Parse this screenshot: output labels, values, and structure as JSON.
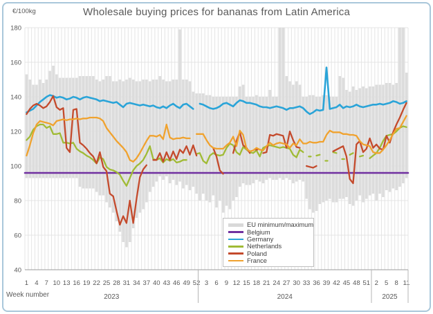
{
  "chart": {
    "title": "Wholesale buying prices for bananas from Latin America",
    "unit_label": "€/100kg",
    "xlabel": "Week number",
    "legend": [
      {
        "label": "EU minimum/maximum",
        "color": "#d9d9d9",
        "kind": "band"
      },
      {
        "label": "Belgium",
        "color": "#7030a0",
        "kind": "line"
      },
      {
        "label": "Germany",
        "color": "#2aa4d8",
        "kind": "line"
      },
      {
        "label": "Netherlands",
        "color": "#a0bb35",
        "kind": "line"
      },
      {
        "label": "Poland",
        "color": "#c44a2c",
        "kind": "line"
      },
      {
        "label": "France",
        "color": "#f0a22e",
        "kind": "line"
      }
    ]
  },
  "chart_data": {
    "type": "line",
    "title": "Wholesale buying prices for bananas from Latin America",
    "ylabel": "€/100kg",
    "xlabel": "Week number",
    "ylim": [
      40,
      180
    ],
    "yticks": [
      40,
      60,
      80,
      100,
      120,
      140,
      160,
      180
    ],
    "grid": true,
    "legend_position": "bottom-right-inside",
    "x_axis": {
      "years": [
        {
          "year": "2023",
          "weeks": 52,
          "tick_start": 1,
          "tick_step": 3
        },
        {
          "year": "2024",
          "weeks": 52,
          "tick_start": 3,
          "tick_step": 3
        },
        {
          "year": "2025",
          "weeks": 11,
          "tick_start": 2,
          "tick_step": 3
        }
      ]
    },
    "band": {
      "name": "EU minimum/maximum",
      "color": "#dcdcdc",
      "max": [
        153,
        150,
        147,
        147,
        150,
        148,
        150,
        155,
        158,
        153,
        151,
        151,
        151,
        151,
        151,
        151,
        152,
        152,
        152,
        152,
        152,
        150,
        149,
        150,
        152,
        152,
        149,
        149,
        150,
        149,
        150,
        151,
        150,
        149,
        149,
        150,
        150,
        149,
        150,
        150,
        152,
        150,
        149,
        149,
        150,
        150,
        179,
        150,
        150,
        149,
        143,
        142,
        142,
        142,
        141,
        141,
        140,
        140,
        140,
        140,
        140,
        140,
        140,
        140,
        146,
        147,
        140,
        140,
        140,
        141,
        140,
        140,
        140,
        144,
        140,
        140,
        180,
        180,
        152,
        149,
        147,
        149,
        147,
        140,
        140,
        141,
        141,
        140,
        140,
        141,
        141,
        140,
        140,
        140,
        152,
        151,
        144,
        143,
        146,
        144,
        145,
        146,
        145,
        146,
        146,
        147,
        147,
        147,
        148,
        148,
        147,
        148,
        180,
        180,
        154
      ],
      "min": [
        93,
        93,
        93,
        93,
        93,
        93,
        93,
        93,
        93,
        93,
        93,
        93,
        93,
        93,
        93,
        93,
        88,
        87,
        87,
        87,
        87,
        85,
        83,
        83,
        79,
        76,
        73,
        68,
        62,
        56,
        53,
        56,
        64,
        70,
        73,
        75,
        79,
        85,
        88,
        91,
        94,
        92,
        94,
        90,
        92,
        89,
        91,
        87,
        89,
        86,
        88,
        84,
        80,
        84,
        80,
        79,
        83,
        76,
        80,
        73,
        77,
        75,
        80,
        82,
        88,
        90,
        89,
        89,
        90,
        92,
        91,
        90,
        92,
        93,
        92,
        92,
        93,
        92,
        93,
        92,
        90,
        91,
        92,
        91,
        81,
        75,
        73,
        74,
        78,
        79,
        80,
        81,
        79,
        79,
        81,
        81,
        82,
        78,
        77,
        80,
        83,
        79,
        81,
        83,
        84,
        80,
        84,
        82,
        86,
        85,
        87,
        86,
        88,
        90,
        93
      ]
    },
    "series": [
      {
        "name": "Belgium",
        "color": "#7030a0",
        "width": 2.6,
        "constant": 96,
        "values": null
      },
      {
        "name": "Germany",
        "color": "#2aa4d8",
        "width": 2.6,
        "constant": null,
        "values": [
          131,
          132,
          133,
          135,
          137,
          138.5,
          140,
          141,
          140.5,
          139.5,
          140,
          139.5,
          138.5,
          139,
          140,
          139.5,
          138.5,
          139.5,
          140,
          139.5,
          139,
          138.5,
          137.5,
          138,
          137.5,
          137,
          136.5,
          137,
          135.5,
          134,
          136,
          136.5,
          136,
          135.5,
          135,
          135.5,
          135,
          134.5,
          135,
          134,
          133.5,
          134.5,
          133.5,
          135,
          136,
          134.5,
          133.5,
          135.5,
          136,
          134.5,
          133,
          null,
          136,
          135.5,
          134.5,
          133.5,
          133,
          133.5,
          134.5,
          136,
          136.5,
          135.5,
          134.5,
          136.5,
          138,
          137.5,
          136.5,
          136.5,
          136,
          135.5,
          134.5,
          134,
          134,
          133.5,
          134,
          134.5,
          134,
          133.5,
          132.5,
          133.5,
          133.5,
          134,
          134.5,
          133.5,
          131.5,
          130,
          131,
          132.5,
          132,
          132.5,
          157,
          133,
          133.5,
          134,
          135.5,
          133.5,
          134.5,
          134,
          134.5,
          135.5,
          134.5,
          134,
          134.5,
          135,
          135.5,
          135.5,
          136,
          135.5,
          136,
          136.5,
          137.5,
          137,
          136,
          136.5,
          137.5
        ]
      },
      {
        "name": "Netherlands",
        "color": "#a0bb35",
        "width": 2.3,
        "constant": null,
        "values": [
          115,
          117,
          121,
          123,
          124,
          124,
          122,
          123,
          118.5,
          118.5,
          119,
          113.5,
          113.5,
          113,
          113.5,
          110,
          108.5,
          107.5,
          106,
          105,
          103.5,
          101.5,
          105,
          104,
          99.5,
          98,
          97.5,
          96.5,
          95,
          91.5,
          88.5,
          93,
          97.5,
          100,
          101.5,
          103.5,
          107,
          111.5,
          104,
          103.5,
          104.5,
          102,
          104,
          103,
          104,
          102,
          102.5,
          103.5,
          103.5,
          null,
          null,
          107,
          107.5,
          103,
          101.5,
          106,
          107.5,
          106.5,
          106,
          106.5,
          110.5,
          113,
          112,
          108,
          106.5,
          111,
          109.5,
          108,
          107.5,
          109,
          105.5,
          110.5,
          111.5,
          112,
          111.5,
          111,
          110.5,
          111,
          110.5,
          110,
          106.5,
          105,
          109.5,
          108,
          null,
          105.5,
          null,
          106,
          106.5,
          null,
          103,
          null,
          108,
          107.5,
          null,
          104,
          null,
          106.5,
          107.5,
          null,
          105.5,
          106,
          null,
          104.5,
          106,
          107.5,
          110.5,
          114.5,
          117.5,
          118,
          118.5,
          120,
          122,
          123,
          122.5
        ]
      },
      {
        "name": "Poland",
        "color": "#c44a2c",
        "width": 2.3,
        "constant": null,
        "values": [
          130,
          133,
          135,
          136,
          135,
          133.5,
          134.5,
          137,
          140.5,
          134,
          132.5,
          133.5,
          110.5,
          108,
          132.5,
          133,
          113.5,
          112,
          110,
          107.5,
          105.5,
          101.5,
          108,
          99.5,
          97,
          84,
          82.5,
          74,
          66,
          71,
          67,
          80,
          67,
          81,
          93.5,
          98,
          100.5,
          null,
          103.5,
          103.5,
          107.5,
          102.5,
          108,
          103.5,
          108.5,
          104,
          109.5,
          107.5,
          111.5,
          106.5,
          112,
          106,
          null,
          null,
          null,
          null,
          110.5,
          105.5,
          97.5,
          95.5,
          null,
          null,
          107.5,
          114.5,
          119.5,
          112,
          110.5,
          107.5,
          null,
          109.5,
          null,
          107.5,
          108,
          118,
          117.5,
          118.5,
          118,
          117.5,
          110.5,
          120,
          115,
          111,
          110.5,
          null,
          100,
          99.5,
          99,
          100,
          null,
          null,
          null,
          null,
          108.5,
          109.5,
          110.5,
          111.5,
          105.5,
          92.5,
          90,
          112.5,
          114.5,
          108,
          110,
          116,
          110.5,
          112.5,
          110,
          109.5,
          117.5,
          113.5,
          119.5,
          124,
          128,
          132.5,
          136.5
        ]
      },
      {
        "name": "France",
        "color": "#f0a22e",
        "width": 2.3,
        "constant": null,
        "values": [
          106,
          112,
          119,
          124,
          126,
          125.5,
          125,
          124.5,
          123.5,
          126,
          126.5,
          127,
          126.5,
          127,
          127,
          127.5,
          127,
          127.5,
          127.5,
          128,
          128,
          128,
          127.5,
          126,
          122,
          119.5,
          117,
          114.5,
          112.5,
          110.5,
          108,
          103.5,
          102.5,
          104.5,
          107.5,
          111,
          114.5,
          117.5,
          117.5,
          117,
          118,
          115.5,
          124,
          116.5,
          115.5,
          116,
          116,
          116.5,
          116,
          116,
          null,
          118.5,
          118.5,
          118.5,
          115,
          112,
          110.5,
          110,
          110,
          110,
          112,
          113.5,
          117,
          111.5,
          120.5,
          118,
          110,
          108.5,
          109,
          110.5,
          109.5,
          109,
          111.5,
          113.5,
          112,
          113,
          113.5,
          113,
          112.5,
          110.5,
          113,
          112,
          115.5,
          113,
          113,
          114,
          113.5,
          113.5,
          114,
          114,
          118,
          120.5,
          119.5,
          119.5,
          119.5,
          118.5,
          118.5,
          118,
          118,
          117.5,
          114.5,
          112.5,
          112,
          111.5,
          108,
          107.5,
          107.5,
          109.5,
          112,
          115,
          118.5,
          121.5,
          122,
          125.5,
          129
        ]
      }
    ]
  }
}
